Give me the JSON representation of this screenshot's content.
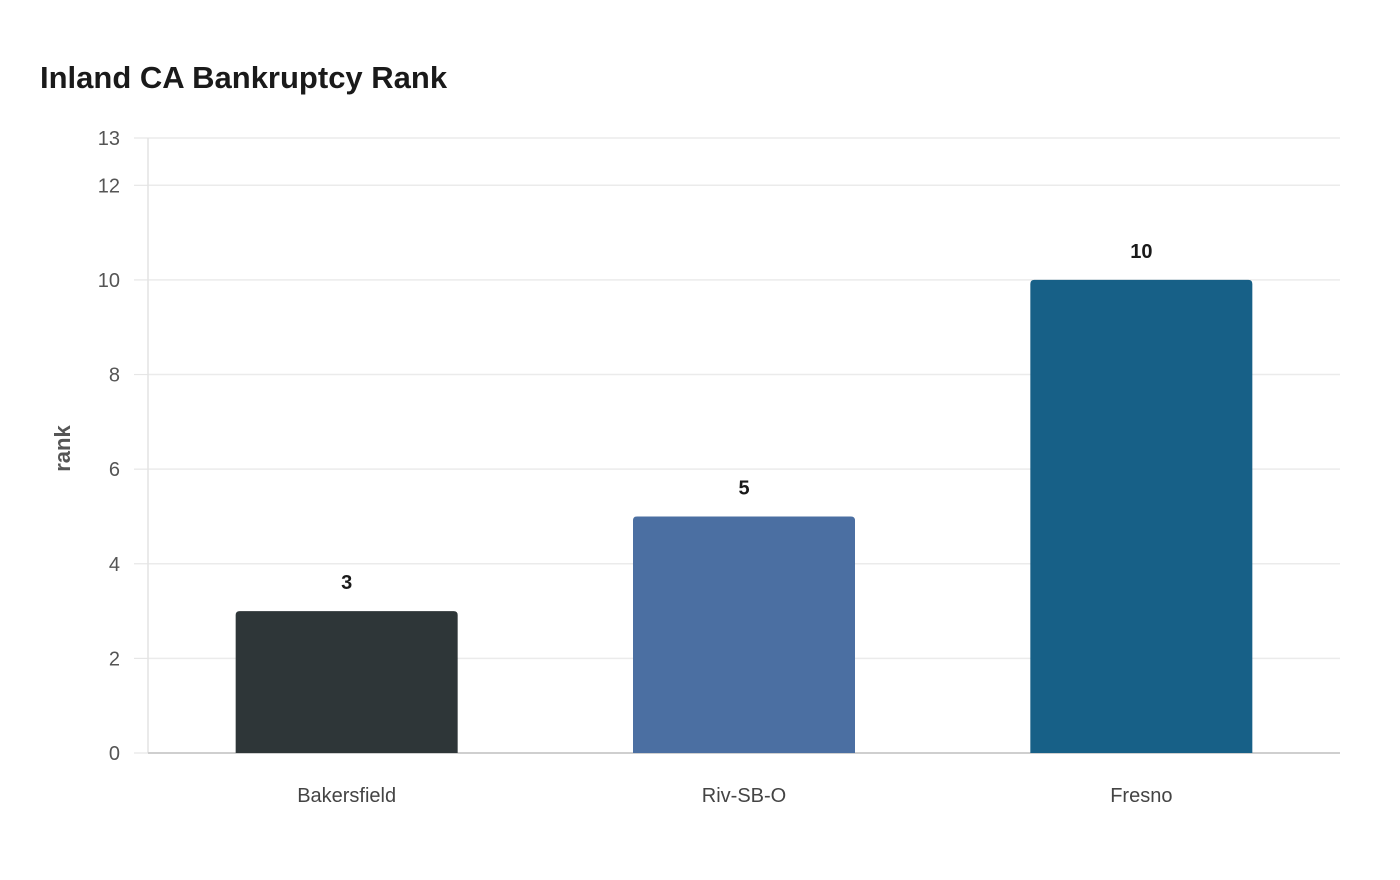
{
  "chart_data": {
    "type": "bar",
    "title": "Inland CA Bankruptcy Rank",
    "xlabel": "",
    "ylabel": "rank",
    "categories": [
      "Bakersfield",
      "Riv-SB-O",
      "Fresno"
    ],
    "values": [
      3,
      5,
      10
    ],
    "colors": [
      "#2e3638",
      "#4b6fa2",
      "#176087"
    ],
    "ylim": [
      0,
      13
    ],
    "yticks": [
      0,
      2,
      4,
      6,
      8,
      10,
      12,
      13
    ],
    "grid": true,
    "legend": "none",
    "data_labels": true
  }
}
